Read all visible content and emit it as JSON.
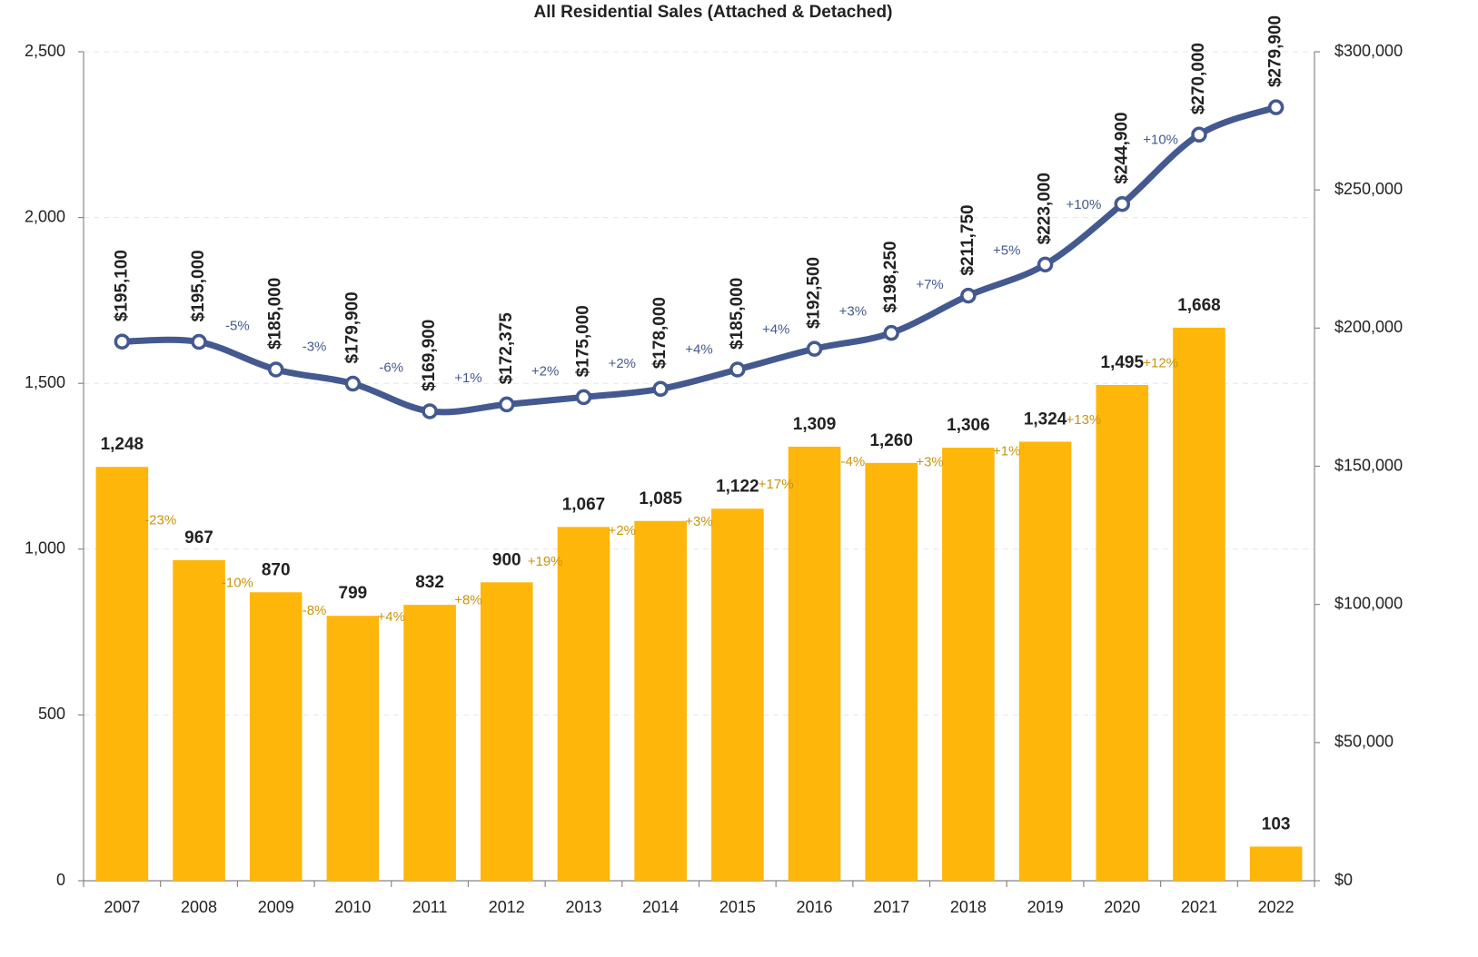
{
  "chart_data": {
    "type": "bar-line",
    "title": "All Residential Sales (Attached & Detached)",
    "categories": [
      "2007",
      "2008",
      "2009",
      "2010",
      "2011",
      "2012",
      "2013",
      "2014",
      "2015",
      "2016",
      "2017",
      "2018",
      "2019",
      "2020",
      "2021",
      "2022"
    ],
    "series": [
      {
        "type": "bar",
        "color": "#ffb60b",
        "change_color": "#c8940c",
        "values": [
          1248,
          967,
          870,
          799,
          832,
          900,
          1067,
          1085,
          1122,
          1309,
          1260,
          1306,
          1324,
          1495,
          1668,
          103
        ],
        "value_labels": [
          "1,248",
          "967",
          "870",
          "799",
          "832",
          "900",
          "1,067",
          "1,085",
          "1,122",
          "1,309",
          "1,260",
          "1,306",
          "1,324",
          "1,495",
          "1,668",
          "103"
        ],
        "change_labels": [
          null,
          "-23%",
          "-10%",
          "-8%",
          "+4%",
          "+8%",
          "+19%",
          "+2%",
          "+3%",
          "+17%",
          "-4%",
          "+3%",
          "+1%",
          "+13%",
          "+12%",
          null
        ]
      },
      {
        "type": "line",
        "axis": "y2",
        "color": "#44598f",
        "change_color": "#44598f",
        "values": [
          195100,
          195000,
          185000,
          179900,
          169900,
          172375,
          175000,
          178000,
          185000,
          192500,
          198250,
          211750,
          223000,
          244900,
          270000,
          279900
        ],
        "value_labels": [
          "$195,100",
          "$195,000",
          "$185,000",
          "$179,900",
          "$169,900",
          "$172,375",
          "$175,000",
          "$178,000",
          "$185,000",
          "$192,500",
          "$198,250",
          "$211,750",
          "$223,000",
          "$244,900",
          "$270,000",
          "$279,900"
        ],
        "change_labels": [
          null,
          null,
          "-5%",
          "-3%",
          "-6%",
          "+1%",
          "+2%",
          "+2%",
          "+4%",
          "+4%",
          "+3%",
          "+7%",
          "+5%",
          "+10%",
          "+10%",
          null
        ]
      }
    ],
    "ylim": [
      0,
      2500
    ],
    "yticks": [
      0,
      500,
      {
        "value": 1000,
        "label": "1,000"
      },
      {
        "value": 1500,
        "label": "1,500"
      },
      {
        "value": 2000,
        "label": "2,000"
      },
      {
        "value": 2500,
        "label": "2,500"
      }
    ],
    "y2lim": [
      0,
      300000
    ],
    "y2ticks": [
      {
        "value": 0,
        "label": "$0"
      },
      {
        "value": 50000,
        "label": "$50,000"
      },
      {
        "value": 100000,
        "label": "$100,000"
      },
      {
        "value": 150000,
        "label": "$150,000"
      },
      {
        "value": 200000,
        "label": "$200,000"
      },
      {
        "value": 250000,
        "label": "$250,000"
      },
      {
        "value": 300000,
        "label": "$300,000"
      }
    ],
    "grid": true
  }
}
